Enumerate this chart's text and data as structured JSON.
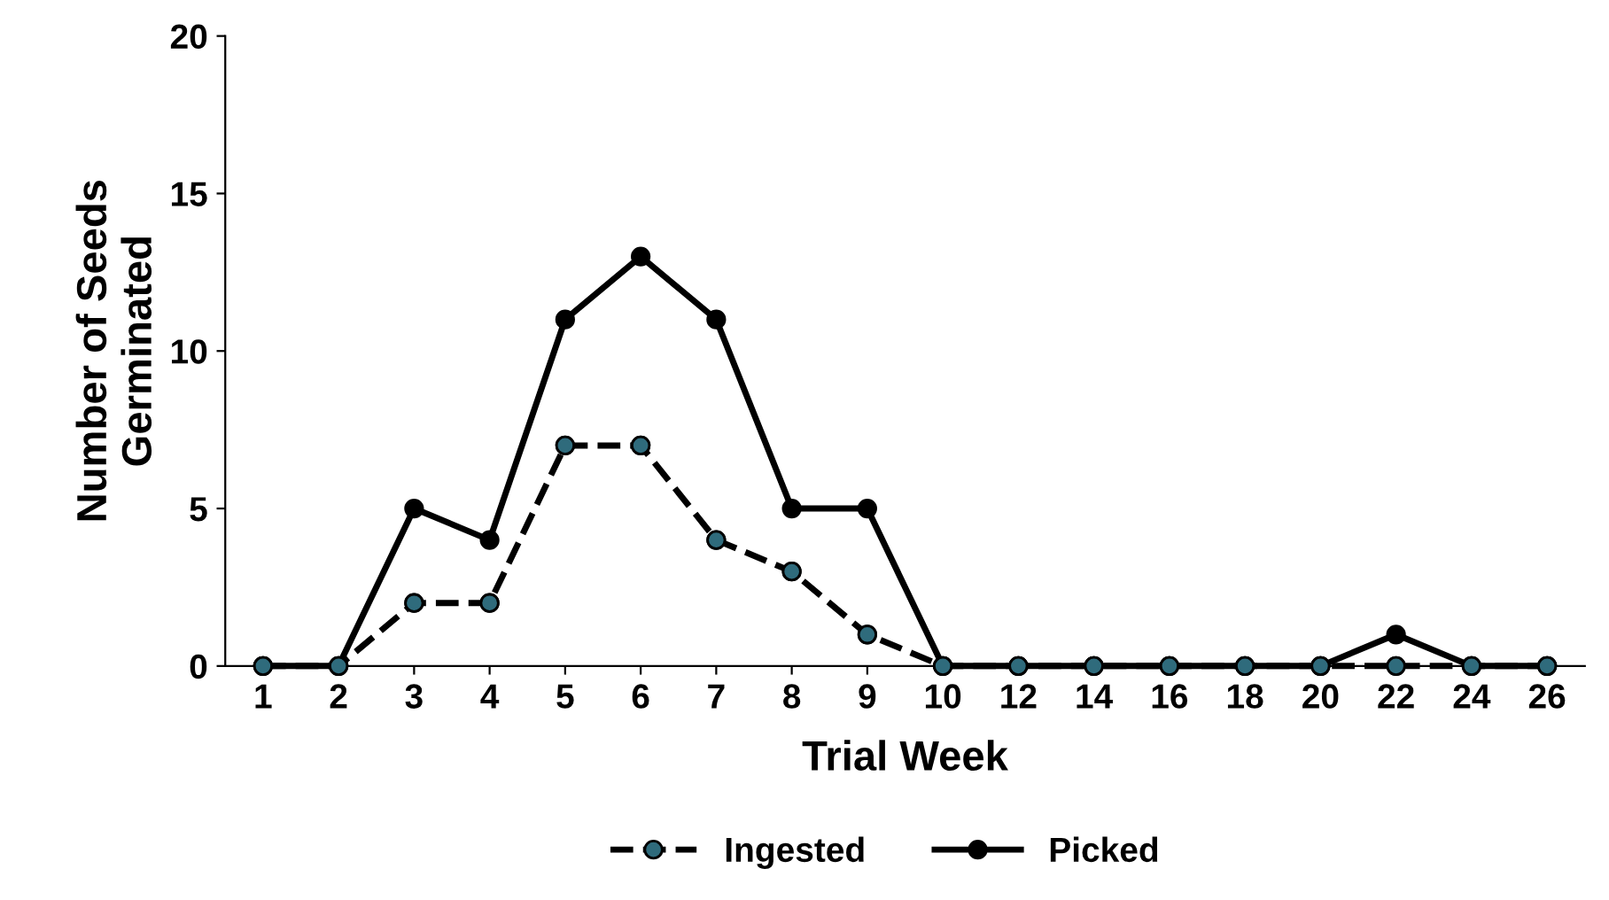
{
  "chart_data": {
    "type": "line",
    "xlabel": "Trial Week",
    "ylabel": "Number of Seeds\nGerminated",
    "categories": [
      "1",
      "2",
      "3",
      "4",
      "5",
      "6",
      "7",
      "8",
      "9",
      "10",
      "12",
      "14",
      "16",
      "18",
      "20",
      "22",
      "24",
      "26"
    ],
    "series": [
      {
        "name": "Ingested",
        "color": "#000000",
        "colors": [
          "#2f6b7c",
          "#2f6b7c",
          "#2f6b7c",
          "#2f6b7c",
          "#2f6b7c",
          "#2f6b7c",
          "#2f6b7c",
          "#2f6b7c",
          "#2f6b7c",
          "#2f6b7c",
          "#2f6b7c",
          "#2f6b7c",
          "#2f6b7c",
          "#2f6b7c",
          "#2f6b7c",
          "#2f6b7c",
          "#2f6b7c",
          "#2f6b7c"
        ],
        "line_style": "dashed",
        "values": [
          0,
          0,
          2,
          2,
          7,
          7,
          4,
          3,
          1,
          0,
          0,
          0,
          0,
          0,
          0,
          0,
          0,
          0
        ]
      },
      {
        "name": "Picked",
        "color": "#000000",
        "line_style": "solid",
        "values": [
          0,
          0,
          5,
          4,
          11,
          13,
          11,
          5,
          5,
          0,
          0,
          0,
          0,
          0,
          0,
          1,
          0,
          0
        ]
      }
    ],
    "ylim": [
      0,
      20
    ],
    "yticks": [
      0,
      5,
      10,
      15,
      20
    ],
    "marker": "circle",
    "grid": false,
    "legend": "bottom"
  }
}
